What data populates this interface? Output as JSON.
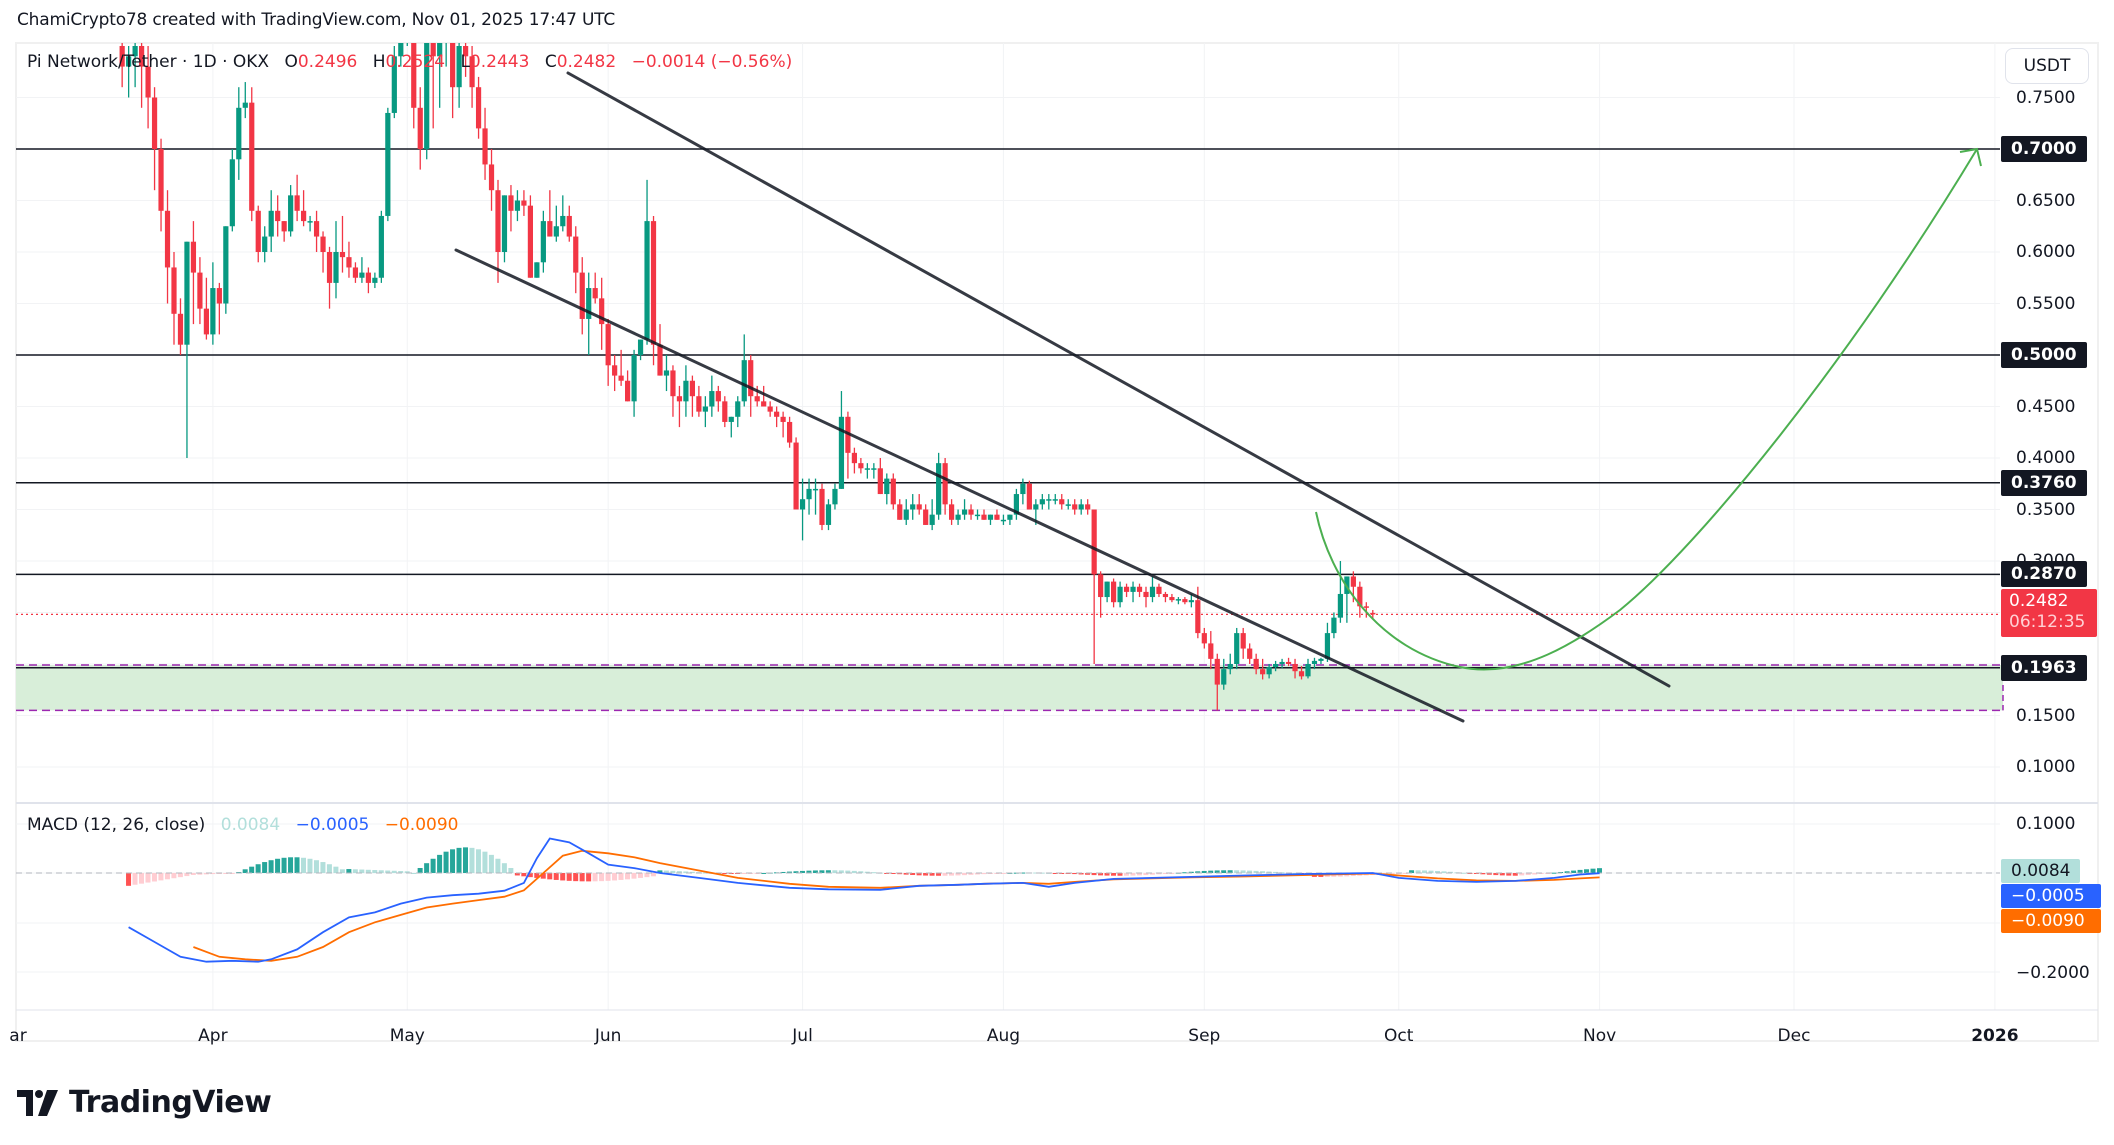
{
  "attribution": "ChamiCrypto78 created with TradingView.com, Nov 01, 2025 17:47 UTC",
  "legend": {
    "symbol": "Pi Network/Tether · 1D · OKX",
    "open_label": "O",
    "open": "0.2496",
    "high_label": "H",
    "high": "0.2524",
    "low_label": "L",
    "low": "0.2443",
    "close_label": "C",
    "close": "0.2482",
    "change": "−0.0014 (−0.56%)"
  },
  "price_axis": {
    "currency": "USDT",
    "ticks": [
      "0.7500",
      "0.6500",
      "0.6000",
      "0.5500",
      "0.4500",
      "0.4000",
      "0.3500",
      "0.3000",
      "0.1500",
      "0.1000"
    ],
    "tick_values": [
      0.75,
      0.65,
      0.6,
      0.55,
      0.45,
      0.4,
      0.35,
      0.3,
      0.15,
      0.1
    ],
    "levels": [
      {
        "label": "0.7000",
        "value": 0.7
      },
      {
        "label": "0.5000",
        "value": 0.5
      },
      {
        "label": "0.3760",
        "value": 0.376
      },
      {
        "label": "0.2870",
        "value": 0.287
      },
      {
        "label": "0.1963",
        "value": 0.1963
      }
    ],
    "last_price": "0.2482",
    "countdown": "06:12:35"
  },
  "macd": {
    "label": "MACD (12, 26, close)",
    "histogram": "0.0084",
    "macd": "-0.0005",
    "signal": "-0.0090",
    "macd_display": "−0.0005",
    "signal_display": "−0.0090",
    "axis_ticks": [
      "0.1000",
      "-0.2000"
    ],
    "axis_display": [
      "0.1000",
      "−0.2000"
    ]
  },
  "time_axis": [
    "ar",
    "Apr",
    "May",
    "Jun",
    "Jul",
    "Aug",
    "Sep",
    "Oct",
    "Nov",
    "Dec",
    "2026"
  ],
  "colors": {
    "up": "#089981",
    "down": "#f23645",
    "macd": "#2962ff",
    "signal": "#ff6d00",
    "hist_up_strong": "#26a69a",
    "hist_up_weak": "#b2dfdb",
    "hist_down_strong": "#ff5252",
    "hist_down_weak": "#ffcdd2",
    "zone": "#d8eed9",
    "arrow": "#4caf50",
    "level": "#131722"
  },
  "brand": "TradingView",
  "chart_data": {
    "type": "candlestick",
    "title": "Pi Network/Tether · 1D · OKX",
    "xlabel": "",
    "ylabel": "USDT",
    "ylim": [
      0.07,
      0.78
    ],
    "x_ticks": [
      "Apr",
      "May",
      "Jun",
      "Jul",
      "Aug",
      "Sep",
      "Oct",
      "Nov",
      "Dec",
      "2026"
    ],
    "horizontal_levels": [
      0.7,
      0.5,
      0.376,
      0.287,
      0.1963
    ],
    "support_zone": [
      0.155,
      0.199
    ],
    "descending_channel": {
      "upper": [
        [
          "2025-05-22",
          0.8
        ],
        [
          "2025-11-14",
          0.175
        ]
      ],
      "lower": [
        [
          "2025-05-09",
          0.6
        ],
        [
          "2025-11-06",
          0.14
        ]
      ]
    },
    "projection_arrow": {
      "from": [
        "2025-10-28",
        0.21
      ],
      "to": [
        "2026-01-01",
        0.7
      ]
    },
    "candles_start": "2025-03-18",
    "ohlc": [
      [
        0.8,
        0.84,
        0.76,
        0.78
      ],
      [
        0.78,
        0.8,
        0.75,
        0.79
      ],
      [
        0.79,
        0.82,
        0.76,
        0.8
      ],
      [
        0.8,
        0.81,
        0.74,
        0.78
      ],
      [
        0.78,
        0.8,
        0.72,
        0.75
      ],
      [
        0.75,
        0.76,
        0.66,
        0.7
      ],
      [
        0.7,
        0.71,
        0.62,
        0.64
      ],
      [
        0.64,
        0.66,
        0.55,
        0.585
      ],
      [
        0.585,
        0.6,
        0.51,
        0.54
      ],
      [
        0.54,
        0.555,
        0.5,
        0.51
      ],
      [
        0.51,
        0.61,
        0.4,
        0.61
      ],
      [
        0.61,
        0.63,
        0.53,
        0.58
      ],
      [
        0.58,
        0.595,
        0.53,
        0.545
      ],
      [
        0.545,
        0.575,
        0.515,
        0.52
      ],
      [
        0.52,
        0.59,
        0.51,
        0.565
      ],
      [
        0.565,
        0.57,
        0.52,
        0.55
      ],
      [
        0.55,
        0.615,
        0.54,
        0.625
      ],
      [
        0.625,
        0.7,
        0.62,
        0.69
      ],
      [
        0.69,
        0.76,
        0.67,
        0.74
      ],
      [
        0.74,
        0.765,
        0.73,
        0.745
      ],
      [
        0.745,
        0.76,
        0.63,
        0.64
      ],
      [
        0.64,
        0.645,
        0.59,
        0.6
      ],
      [
        0.6,
        0.625,
        0.59,
        0.615
      ],
      [
        0.615,
        0.66,
        0.6,
        0.64
      ],
      [
        0.64,
        0.655,
        0.615,
        0.63
      ],
      [
        0.63,
        0.63,
        0.61,
        0.62
      ],
      [
        0.62,
        0.665,
        0.615,
        0.655
      ],
      [
        0.655,
        0.675,
        0.63,
        0.64
      ],
      [
        0.64,
        0.66,
        0.625,
        0.63
      ],
      [
        0.63,
        0.635,
        0.62,
        0.63
      ],
      [
        0.63,
        0.64,
        0.6,
        0.615
      ],
      [
        0.615,
        0.62,
        0.58,
        0.6
      ],
      [
        0.6,
        0.605,
        0.545,
        0.57
      ],
      [
        0.57,
        0.63,
        0.555,
        0.6
      ],
      [
        0.6,
        0.635,
        0.58,
        0.595
      ],
      [
        0.595,
        0.61,
        0.575,
        0.585
      ],
      [
        0.585,
        0.59,
        0.57,
        0.575
      ],
      [
        0.575,
        0.595,
        0.57,
        0.58
      ],
      [
        0.58,
        0.585,
        0.56,
        0.57
      ],
      [
        0.57,
        0.58,
        0.565,
        0.575
      ],
      [
        0.575,
        0.64,
        0.57,
        0.635
      ],
      [
        0.635,
        0.74,
        0.63,
        0.735
      ],
      [
        0.735,
        0.8,
        0.73,
        0.79
      ],
      [
        0.79,
        0.86,
        0.78,
        0.84
      ],
      [
        0.84,
        0.9,
        0.8,
        0.87
      ],
      [
        0.87,
        0.89,
        0.72,
        0.74
      ],
      [
        0.74,
        0.76,
        0.68,
        0.7
      ],
      [
        0.7,
        0.81,
        0.69,
        0.81
      ],
      [
        0.81,
        0.84,
        0.72,
        0.79
      ],
      [
        0.79,
        0.86,
        0.74,
        0.835
      ],
      [
        0.835,
        0.88,
        0.78,
        0.85
      ],
      [
        0.85,
        0.86,
        0.73,
        0.76
      ],
      [
        0.76,
        0.82,
        0.74,
        0.8
      ],
      [
        0.8,
        0.83,
        0.77,
        0.79
      ],
      [
        0.79,
        0.8,
        0.74,
        0.76
      ],
      [
        0.76,
        0.77,
        0.71,
        0.72
      ],
      [
        0.72,
        0.74,
        0.67,
        0.685
      ],
      [
        0.685,
        0.7,
        0.64,
        0.66
      ],
      [
        0.66,
        0.67,
        0.57,
        0.6
      ],
      [
        0.6,
        0.62,
        0.59,
        0.655
      ],
      [
        0.655,
        0.665,
        0.62,
        0.64
      ],
      [
        0.64,
        0.66,
        0.63,
        0.65
      ],
      [
        0.65,
        0.66,
        0.635,
        0.645
      ],
      [
        0.645,
        0.655,
        0.61,
        0.575
      ],
      [
        0.575,
        0.585,
        0.6,
        0.59
      ],
      [
        0.59,
        0.64,
        0.58,
        0.63
      ],
      [
        0.63,
        0.66,
        0.615,
        0.615
      ],
      [
        0.615,
        0.645,
        0.61,
        0.625
      ],
      [
        0.625,
        0.655,
        0.62,
        0.635
      ],
      [
        0.635,
        0.645,
        0.61,
        0.615
      ],
      [
        0.615,
        0.625,
        0.56,
        0.58
      ],
      [
        0.58,
        0.595,
        0.52,
        0.535
      ],
      [
        0.535,
        0.58,
        0.5,
        0.565
      ],
      [
        0.565,
        0.58,
        0.55,
        0.555
      ],
      [
        0.555,
        0.575,
        0.505,
        0.53
      ],
      [
        0.53,
        0.535,
        0.47,
        0.49
      ],
      [
        0.49,
        0.5,
        0.465,
        0.48
      ],
      [
        0.48,
        0.505,
        0.47,
        0.475
      ],
      [
        0.475,
        0.485,
        0.46,
        0.455
      ],
      [
        0.455,
        0.505,
        0.44,
        0.5
      ],
      [
        0.5,
        0.51,
        0.495,
        0.515
      ],
      [
        0.515,
        0.67,
        0.51,
        0.63
      ],
      [
        0.63,
        0.635,
        0.49,
        0.51
      ],
      [
        0.51,
        0.53,
        0.49,
        0.48
      ],
      [
        0.48,
        0.5,
        0.465,
        0.485
      ],
      [
        0.485,
        0.49,
        0.44,
        0.46
      ],
      [
        0.46,
        0.47,
        0.43,
        0.455
      ],
      [
        0.455,
        0.49,
        0.44,
        0.475
      ],
      [
        0.475,
        0.48,
        0.44,
        0.46
      ],
      [
        0.46,
        0.47,
        0.44,
        0.445
      ],
      [
        0.445,
        0.46,
        0.43,
        0.45
      ],
      [
        0.45,
        0.48,
        0.44,
        0.465
      ],
      [
        0.465,
        0.47,
        0.445,
        0.455
      ],
      [
        0.455,
        0.46,
        0.43,
        0.435
      ],
      [
        0.435,
        0.44,
        0.42,
        0.44
      ],
      [
        0.44,
        0.46,
        0.43,
        0.455
      ],
      [
        0.455,
        0.52,
        0.45,
        0.495
      ],
      [
        0.495,
        0.5,
        0.44,
        0.46
      ],
      [
        0.46,
        0.47,
        0.45,
        0.455
      ],
      [
        0.455,
        0.47,
        0.45,
        0.45
      ],
      [
        0.45,
        0.455,
        0.44,
        0.445
      ],
      [
        0.445,
        0.45,
        0.43,
        0.44
      ],
      [
        0.44,
        0.445,
        0.42,
        0.435
      ],
      [
        0.435,
        0.44,
        0.41,
        0.415
      ],
      [
        0.415,
        0.42,
        0.38,
        0.35
      ],
      [
        0.35,
        0.38,
        0.32,
        0.36
      ],
      [
        0.36,
        0.38,
        0.345,
        0.37
      ],
      [
        0.37,
        0.38,
        0.345,
        0.37
      ],
      [
        0.37,
        0.375,
        0.33,
        0.335
      ],
      [
        0.335,
        0.36,
        0.33,
        0.355
      ],
      [
        0.355,
        0.375,
        0.35,
        0.37
      ],
      [
        0.37,
        0.465,
        0.37,
        0.44
      ],
      [
        0.44,
        0.445,
        0.38,
        0.405
      ],
      [
        0.405,
        0.41,
        0.385,
        0.395
      ],
      [
        0.395,
        0.4,
        0.385,
        0.39
      ],
      [
        0.39,
        0.395,
        0.38,
        0.39
      ],
      [
        0.39,
        0.395,
        0.38,
        0.39
      ],
      [
        0.39,
        0.4,
        0.37,
        0.365
      ],
      [
        0.365,
        0.385,
        0.355,
        0.38
      ],
      [
        0.38,
        0.385,
        0.35,
        0.355
      ],
      [
        0.355,
        0.36,
        0.34,
        0.34
      ],
      [
        0.34,
        0.36,
        0.335,
        0.35
      ],
      [
        0.35,
        0.365,
        0.34,
        0.355
      ],
      [
        0.355,
        0.365,
        0.345,
        0.35
      ],
      [
        0.35,
        0.355,
        0.335,
        0.335
      ],
      [
        0.335,
        0.36,
        0.33,
        0.345
      ],
      [
        0.345,
        0.405,
        0.34,
        0.395
      ],
      [
        0.395,
        0.4,
        0.345,
        0.355
      ],
      [
        0.355,
        0.36,
        0.335,
        0.34
      ],
      [
        0.34,
        0.35,
        0.335,
        0.345
      ],
      [
        0.345,
        0.36,
        0.34,
        0.35
      ],
      [
        0.35,
        0.355,
        0.34,
        0.345
      ],
      [
        0.345,
        0.35,
        0.34,
        0.345
      ],
      [
        0.345,
        0.35,
        0.34,
        0.34
      ],
      [
        0.34,
        0.345,
        0.335,
        0.345
      ],
      [
        0.345,
        0.35,
        0.34,
        0.34
      ],
      [
        0.34,
        0.345,
        0.335,
        0.34
      ],
      [
        0.34,
        0.345,
        0.335,
        0.345
      ],
      [
        0.345,
        0.37,
        0.34,
        0.365
      ],
      [
        0.365,
        0.38,
        0.355,
        0.375
      ],
      [
        0.375,
        0.378,
        0.35,
        0.35
      ],
      [
        0.35,
        0.36,
        0.335,
        0.355
      ],
      [
        0.355,
        0.365,
        0.35,
        0.36
      ],
      [
        0.36,
        0.365,
        0.35,
        0.36
      ],
      [
        0.36,
        0.365,
        0.355,
        0.36
      ],
      [
        0.36,
        0.365,
        0.35,
        0.355
      ],
      [
        0.355,
        0.36,
        0.35,
        0.355
      ],
      [
        0.355,
        0.36,
        0.345,
        0.35
      ],
      [
        0.35,
        0.36,
        0.345,
        0.355
      ],
      [
        0.355,
        0.36,
        0.345,
        0.35
      ],
      [
        0.35,
        0.35,
        0.2,
        0.287
      ],
      [
        0.287,
        0.29,
        0.245,
        0.265
      ],
      [
        0.265,
        0.28,
        0.26,
        0.28
      ],
      [
        0.28,
        0.283,
        0.255,
        0.26
      ],
      [
        0.26,
        0.28,
        0.255,
        0.275
      ],
      [
        0.275,
        0.278,
        0.265,
        0.27
      ],
      [
        0.27,
        0.28,
        0.26,
        0.275
      ],
      [
        0.275,
        0.278,
        0.265,
        0.27
      ],
      [
        0.27,
        0.275,
        0.255,
        0.265
      ],
      [
        0.265,
        0.285,
        0.26,
        0.275
      ],
      [
        0.275,
        0.278,
        0.265,
        0.268
      ],
      [
        0.268,
        0.27,
        0.26,
        0.265
      ],
      [
        0.265,
        0.268,
        0.26,
        0.262
      ],
      [
        0.262,
        0.265,
        0.258,
        0.263
      ],
      [
        0.263,
        0.265,
        0.258,
        0.26
      ],
      [
        0.26,
        0.268,
        0.255,
        0.262
      ],
      [
        0.262,
        0.275,
        0.225,
        0.23
      ],
      [
        0.23,
        0.235,
        0.215,
        0.22
      ],
      [
        0.22,
        0.232,
        0.195,
        0.205
      ],
      [
        0.205,
        0.21,
        0.155,
        0.18
      ],
      [
        0.18,
        0.205,
        0.175,
        0.195
      ],
      [
        0.195,
        0.21,
        0.19,
        0.2
      ],
      [
        0.2,
        0.235,
        0.195,
        0.23
      ],
      [
        0.23,
        0.235,
        0.205,
        0.215
      ],
      [
        0.215,
        0.22,
        0.2,
        0.205
      ],
      [
        0.205,
        0.21,
        0.19,
        0.195
      ],
      [
        0.195,
        0.205,
        0.185,
        0.19
      ],
      [
        0.19,
        0.2,
        0.186,
        0.197
      ],
      [
        0.197,
        0.203,
        0.193,
        0.2
      ],
      [
        0.2,
        0.205,
        0.196,
        0.202
      ],
      [
        0.202,
        0.206,
        0.198,
        0.2
      ],
      [
        0.2,
        0.205,
        0.186,
        0.193
      ],
      [
        0.193,
        0.198,
        0.185,
        0.188
      ],
      [
        0.188,
        0.205,
        0.186,
        0.2
      ],
      [
        0.2,
        0.206,
        0.195,
        0.203
      ],
      [
        0.203,
        0.206,
        0.2,
        0.205
      ],
      [
        0.205,
        0.24,
        0.202,
        0.23
      ],
      [
        0.23,
        0.25,
        0.225,
        0.245
      ],
      [
        0.245,
        0.3,
        0.24,
        0.268
      ],
      [
        0.268,
        0.275,
        0.24,
        0.285
      ],
      [
        0.285,
        0.29,
        0.26,
        0.275
      ],
      [
        0.275,
        0.28,
        0.245,
        0.256
      ],
      [
        0.256,
        0.26,
        0.245,
        0.255
      ],
      [
        0.2496,
        0.2524,
        0.2443,
        0.2482
      ]
    ]
  }
}
